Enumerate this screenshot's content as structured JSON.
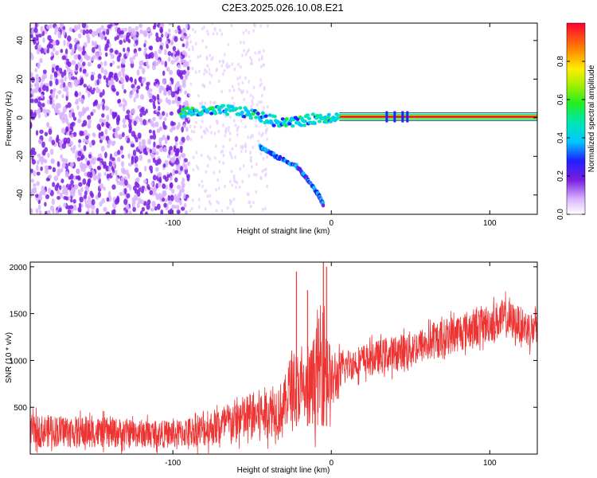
{
  "title": "C2E3.2025.026.10.08.E21",
  "chart_data": [
    {
      "type": "heatmap",
      "xlabel": "Height of straight line (km)",
      "ylabel": "Frequency (Hz)",
      "xlim": [
        -190,
        130
      ],
      "ylim": [
        -50,
        49
      ],
      "xticks": [
        -100,
        0,
        100
      ],
      "xtick_labels": [
        "-100",
        "0",
        "100"
      ],
      "yticks": [
        -40,
        -20,
        0,
        20,
        40
      ],
      "ytick_labels": [
        "-40",
        "-20",
        "0",
        "20",
        "40"
      ],
      "colorbar": {
        "label": "Normalized spectral amplitude",
        "range": [
          0,
          1
        ],
        "ticks": [
          0,
          0.2,
          0.4,
          0.6,
          0.8
        ],
        "tick_labels": [
          "0.0",
          "0.2",
          "0.4",
          "0.6",
          "0.8"
        ]
      },
      "features": [
        {
          "name": "noise-region",
          "x_range": [
            -190,
            -90
          ],
          "amplitude": 0.2
        },
        {
          "name": "carrier-line",
          "x_range": [
            5,
            130
          ],
          "frequency": 0.5,
          "amplitude": 0.95
        },
        {
          "name": "descending-trace",
          "points": [
            [
              -45,
              -15
            ],
            [
              -35,
              -20
            ],
            [
              -22,
              -25
            ],
            [
              -15,
              -32
            ],
            [
              -8,
              -40
            ],
            [
              -5,
              -45
            ]
          ],
          "amplitude": 0.45
        },
        {
          "name": "main-trace",
          "points": [
            [
              -95,
              3
            ],
            [
              -80,
              3
            ],
            [
              -65,
              4
            ],
            [
              -50,
              2
            ],
            [
              -35,
              -2
            ],
            [
              -20,
              -2
            ],
            [
              -8,
              0
            ],
            [
              5,
              0.5
            ]
          ],
          "amplitude": 0.6
        }
      ]
    },
    {
      "type": "line",
      "xlabel": "Height of straight line (km)",
      "ylabel": "SNR (10 * v/v)",
      "xlim": [
        -190,
        130
      ],
      "ylim": [
        0,
        2050
      ],
      "xticks": [
        -100,
        0,
        100
      ],
      "xtick_labels": [
        "-100",
        "0",
        "100"
      ],
      "yticks": [
        500,
        1000,
        1500,
        2000
      ],
      "ytick_labels": [
        "500",
        "1000",
        "1500",
        "2000"
      ],
      "color": "#ee3333",
      "envelope_x": [
        -190,
        -150,
        -100,
        -80,
        -60,
        -40,
        -30,
        -25,
        -15,
        -8,
        -5,
        0,
        10,
        20,
        40,
        60,
        80,
        100,
        110,
        120,
        130
      ],
      "envelope_low": [
        0,
        0,
        0,
        0,
        0,
        50,
        100,
        200,
        100,
        50,
        0,
        300,
        700,
        750,
        800,
        900,
        1000,
        1100,
        1150,
        1100,
        1000
      ],
      "envelope_high": [
        500,
        470,
        420,
        520,
        700,
        850,
        900,
        1300,
        1200,
        1700,
        2050,
        1200,
        1200,
        1250,
        1350,
        1450,
        1600,
        1700,
        1750,
        1650,
        1600
      ],
      "spikes": [
        {
          "x": -22,
          "y": 1950
        },
        {
          "x": -15,
          "y": 1750
        },
        {
          "x": -5,
          "y": 2050
        },
        {
          "x": -3,
          "y": 2000
        }
      ]
    }
  ]
}
